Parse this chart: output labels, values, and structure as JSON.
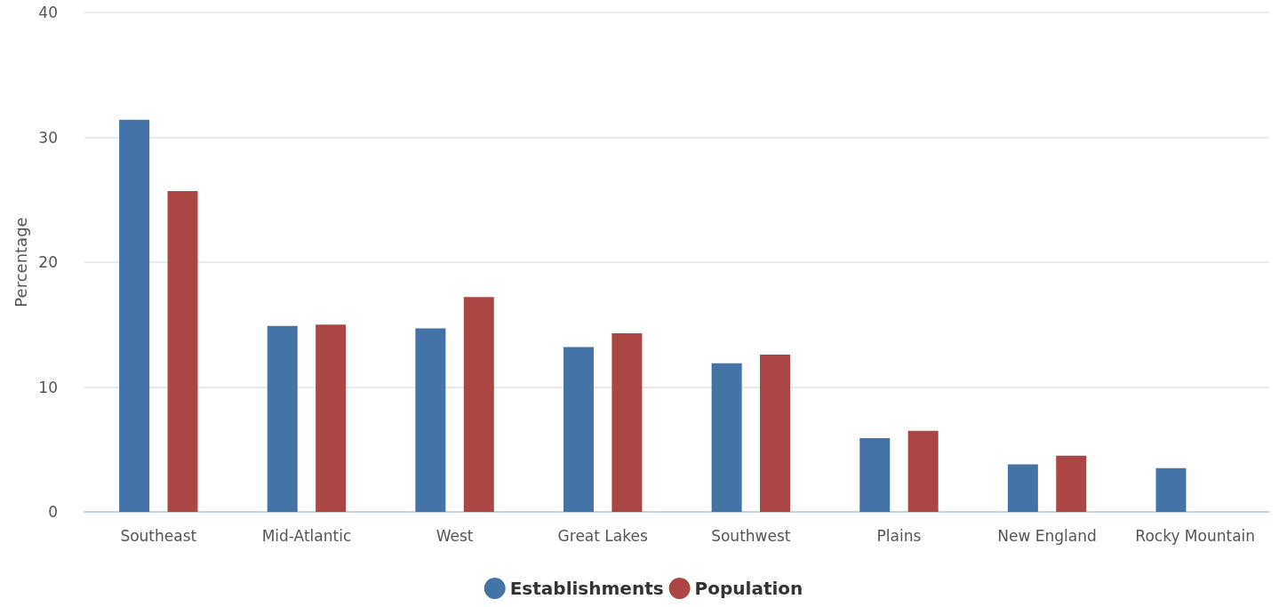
{
  "chart_data": {
    "type": "bar",
    "ylabel": "Percentage",
    "categories": [
      "Southeast",
      "Mid-Atlantic",
      "West",
      "Great Lakes",
      "Southwest",
      "Plains",
      "New England",
      "Rocky Mountain"
    ],
    "series": [
      {
        "name": "Establishments",
        "color": "#4473a8",
        "values": [
          31.4,
          14.9,
          14.7,
          13.2,
          11.9,
          5.9,
          3.8,
          3.5
        ]
      },
      {
        "name": "Population",
        "color": "#ab4644",
        "values": [
          25.7,
          15.0,
          17.2,
          14.3,
          12.6,
          6.5,
          4.5,
          null
        ]
      }
    ],
    "ylim": [
      0,
      40
    ],
    "yticks": [
      0,
      10,
      20,
      30,
      40
    ],
    "grid": "y",
    "legend": "bottom"
  }
}
